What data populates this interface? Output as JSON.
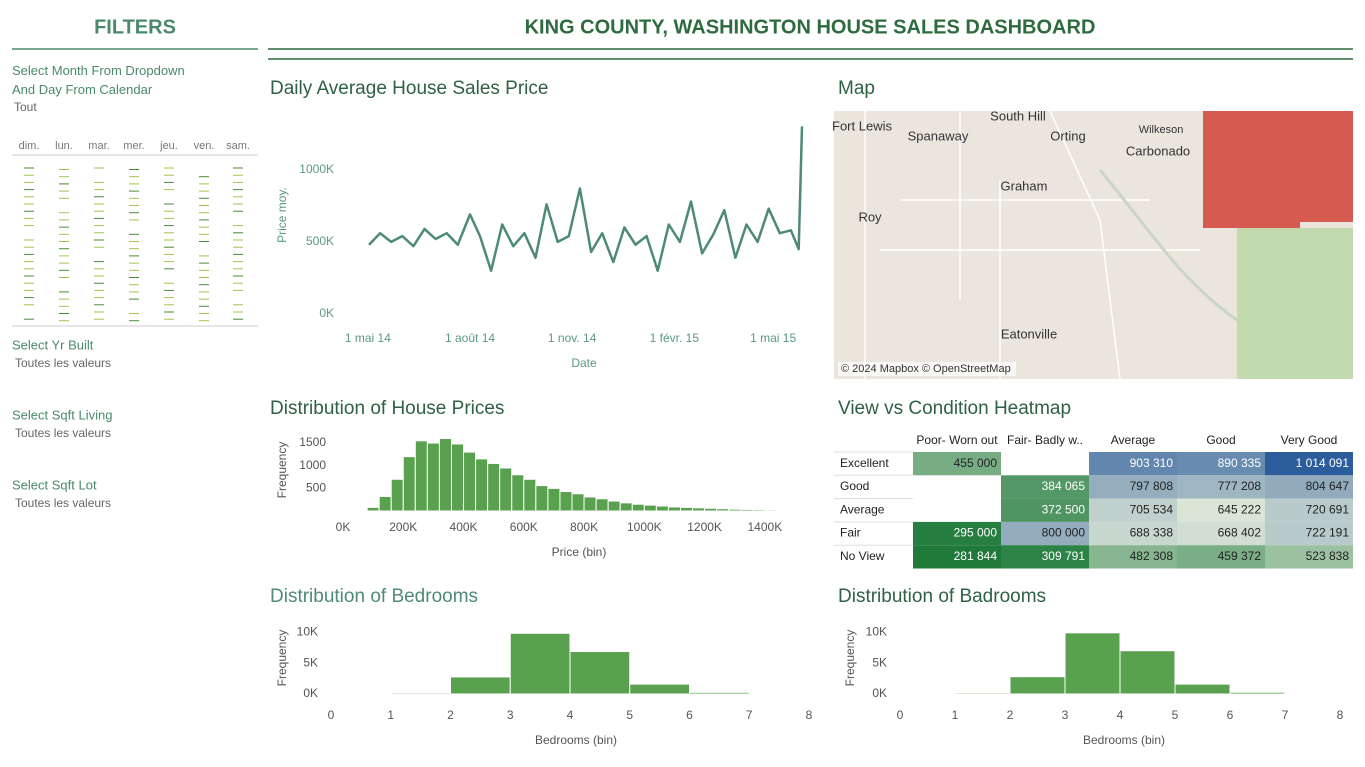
{
  "header": {
    "title": "KING COUNTY, WASHINGTON HOUSE SALES DASHBOARD"
  },
  "filters": {
    "title": "FILTERS",
    "month_label": "Select Month From Dropdown And Day From Calendar",
    "month_value": "Tout",
    "weekdays": [
      "dim.",
      "lun.",
      "mar.",
      "mer.",
      "jeu.",
      "ven.",
      "sam."
    ],
    "yr_built": {
      "label": "Select Yr Built",
      "value": "Toutes les valeurs"
    },
    "sqft_living": {
      "label": "Select Sqft Living",
      "value": "Toutes les valeurs"
    },
    "sqft_lot": {
      "label": "Select Sqft Lot",
      "value": "Toutes les valeurs"
    }
  },
  "map": {
    "title": "Map",
    "attribution": "© 2024 Mapbox © OpenStreetMap",
    "places": [
      "South Hill",
      "Fort Lewis",
      "Spanaway",
      "Orting",
      "Wilkeson",
      "Carbonado",
      "Graham",
      "Roy",
      "Eatonville"
    ]
  },
  "chart_data": [
    {
      "type": "line",
      "title": "Daily Average House Sales Price",
      "x_label": "Date",
      "y_label": "Price moy.",
      "color": "#4e8a78",
      "grid": false,
      "x": [
        "2014-05-02",
        "2014-05-12",
        "2014-05-22",
        "2014-06-01",
        "2014-06-11",
        "2014-06-21",
        "2014-07-01",
        "2014-07-11",
        "2014-07-21",
        "2014-08-01",
        "2014-08-10",
        "2014-08-20",
        "2014-08-30",
        "2014-09-09",
        "2014-09-19",
        "2014-09-29",
        "2014-10-09",
        "2014-10-19",
        "2014-10-29",
        "2014-11-08",
        "2014-11-18",
        "2014-11-28",
        "2014-12-08",
        "2014-12-18",
        "2014-12-28",
        "2015-01-07",
        "2015-01-17",
        "2015-01-27",
        "2015-02-06",
        "2015-02-16",
        "2015-02-26",
        "2015-03-08",
        "2015-03-18",
        "2015-03-28",
        "2015-04-07",
        "2015-04-17",
        "2015-04-27",
        "2015-05-07",
        "2015-05-17",
        "2015-05-24",
        "2015-05-27"
      ],
      "values": [
        480000,
        560000,
        500000,
        540000,
        470000,
        590000,
        520000,
        560000,
        480000,
        690000,
        540000,
        300000,
        620000,
        470000,
        560000,
        390000,
        760000,
        500000,
        540000,
        870000,
        430000,
        560000,
        360000,
        600000,
        480000,
        540000,
        300000,
        620000,
        500000,
        780000,
        420000,
        550000,
        720000,
        390000,
        620000,
        500000,
        730000,
        560000,
        580000,
        450000,
        1300000
      ],
      "xlim": [
        "2014-05-02",
        "2015-05-27"
      ],
      "xticks": [
        {
          "value": "2014-05-01",
          "label": "1 mai 14"
        },
        {
          "value": "2014-08-01",
          "label": "1 août 14"
        },
        {
          "value": "2014-11-01",
          "label": "1 nov. 14"
        },
        {
          "value": "2015-02-01",
          "label": "1 févr. 15"
        },
        {
          "value": "2015-05-01",
          "label": "1 mai 15"
        }
      ],
      "ylim": [
        0,
        1400000
      ],
      "yticks": [
        {
          "value": 0,
          "label": "0K"
        },
        {
          "value": 500000,
          "label": "500K"
        },
        {
          "value": 1000000,
          "label": "1000K"
        }
      ]
    },
    {
      "type": "histogram",
      "title": "Distribution of House Prices",
      "x_label": "Price (bin)",
      "y_label": "Frequency",
      "color": "#59a14f",
      "bins": [
        40000,
        80000,
        120000,
        160000,
        200000,
        240000,
        280000,
        320000,
        360000,
        400000,
        440000,
        480000,
        520000,
        560000,
        600000,
        640000,
        680000,
        720000,
        760000,
        800000,
        840000,
        880000,
        920000,
        960000,
        1000000,
        1040000,
        1080000,
        1120000,
        1160000,
        1200000,
        1240000,
        1280000,
        1320000,
        1360000,
        1400000,
        1440000,
        1480000
      ],
      "values": [
        10,
        80,
        320,
        700,
        1200,
        1550,
        1500,
        1600,
        1480,
        1300,
        1150,
        1050,
        950,
        800,
        700,
        560,
        500,
        430,
        380,
        310,
        270,
        220,
        180,
        150,
        130,
        110,
        90,
        80,
        70,
        60,
        50,
        40,
        35,
        30,
        25,
        20
      ],
      "xlim": [
        0,
        1500000
      ],
      "xticks": [
        {
          "value": 0,
          "label": "0K"
        },
        {
          "value": 200000,
          "label": "200K"
        },
        {
          "value": 400000,
          "label": "400K"
        },
        {
          "value": 600000,
          "label": "600K"
        },
        {
          "value": 800000,
          "label": "800K"
        },
        {
          "value": 1000000,
          "label": "1000K"
        },
        {
          "value": 1200000,
          "label": "1200K"
        },
        {
          "value": 1400000,
          "label": "1400K"
        }
      ],
      "ylim": [
        0,
        1700
      ],
      "yticks": [
        500,
        1000,
        1500
      ]
    },
    {
      "type": "histogram",
      "title": "Distribution of Bedrooms",
      "x_label": "Bedrooms (bin)",
      "y_label": "Frequency",
      "color": "#59a14f",
      "bins": [
        1,
        2,
        3,
        4,
        5,
        6,
        7,
        8
      ],
      "values": [
        190,
        2760,
        9820,
        6880,
        1600,
        270,
        40
      ],
      "xlim": [
        0,
        8
      ],
      "xticks": [
        0,
        1,
        2,
        3,
        4,
        5,
        6,
        7,
        8
      ],
      "ylim": [
        0,
        11000
      ],
      "yticks": [
        {
          "value": 0,
          "label": "0K"
        },
        {
          "value": 5000,
          "label": "5K"
        },
        {
          "value": 10000,
          "label": "10K"
        }
      ]
    },
    {
      "type": "histogram",
      "title": "Distribution of Badrooms",
      "x_label": "Bedrooms (bin)",
      "y_label": "Frequency",
      "color": "#59a14f",
      "bins": [
        1,
        2,
        3,
        4,
        5,
        6,
        7,
        8
      ],
      "values": [
        200,
        2800,
        9900,
        7000,
        1600,
        280,
        40
      ],
      "xlim": [
        0,
        8
      ],
      "xticks": [
        0,
        1,
        2,
        3,
        4,
        5,
        6,
        7,
        8
      ],
      "ylim": [
        0,
        11000
      ],
      "yticks": [
        {
          "value": 0,
          "label": "0K"
        },
        {
          "value": 5000,
          "label": "5K"
        },
        {
          "value": 10000,
          "label": "10K"
        }
      ]
    },
    {
      "type": "heatmap",
      "title": "View vs Condition Heatmap",
      "columns": [
        "Poor- Worn out",
        "Fair- Badly w..",
        "Average",
        "Good",
        "Very Good"
      ],
      "rows": [
        "Excellent",
        "Good",
        "Average",
        "Fair",
        "No View"
      ],
      "values": [
        [
          455000,
          null,
          903310,
          890335,
          1014091
        ],
        [
          null,
          384065,
          797808,
          777208,
          804647
        ],
        [
          null,
          372500,
          705534,
          645222,
          720691
        ],
        [
          295000,
          800000,
          688338,
          668402,
          722191
        ],
        [
          281844,
          309791,
          482308,
          459372,
          523838
        ]
      ],
      "value_labels": [
        [
          "455 000",
          null,
          "903 310",
          "890 335",
          "1 014 091"
        ],
        [
          null,
          "384 065",
          "797 808",
          "777 208",
          "804 647"
        ],
        [
          null,
          "372 500",
          "705 534",
          "645 222",
          "720 691"
        ],
        [
          "295 000",
          "800 000",
          "688 338",
          "668 402",
          "722 191"
        ],
        [
          "281 844",
          "309 791",
          "482 308",
          "459 372",
          "523 838"
        ]
      ],
      "colors": [
        "#1f7a3a",
        "#dbe6d6",
        "#2d5c9c"
      ]
    }
  ]
}
